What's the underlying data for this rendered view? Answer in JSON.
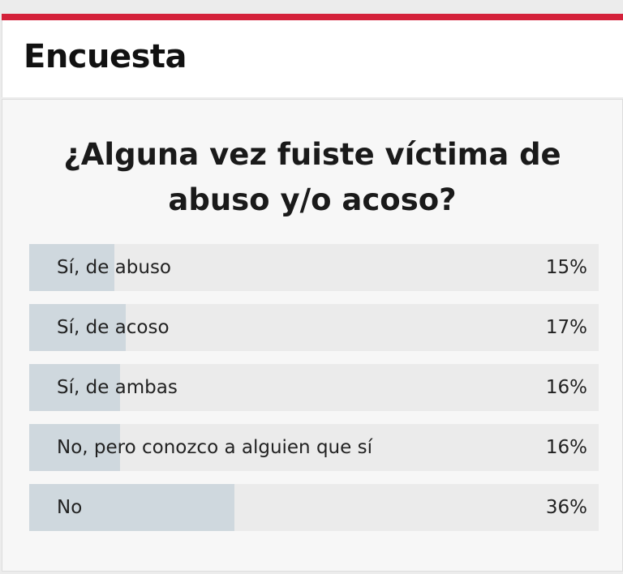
{
  "header": {
    "title": "Encuesta",
    "accent": "#d4213a"
  },
  "poll": {
    "question": "¿Alguna vez fuiste víctima de abuso y/o acoso?",
    "options": [
      {
        "label": "Sí, de abuso",
        "percent": 15,
        "percent_label": "15%"
      },
      {
        "label": "Sí, de acoso",
        "percent": 17,
        "percent_label": "17%"
      },
      {
        "label": "Sí, de ambas",
        "percent": 16,
        "percent_label": "16%"
      },
      {
        "label": "No, pero conozco a alguien que sí",
        "percent": 16,
        "percent_label": "16%"
      },
      {
        "label": "No",
        "percent": 36,
        "percent_label": "36%"
      }
    ]
  }
}
